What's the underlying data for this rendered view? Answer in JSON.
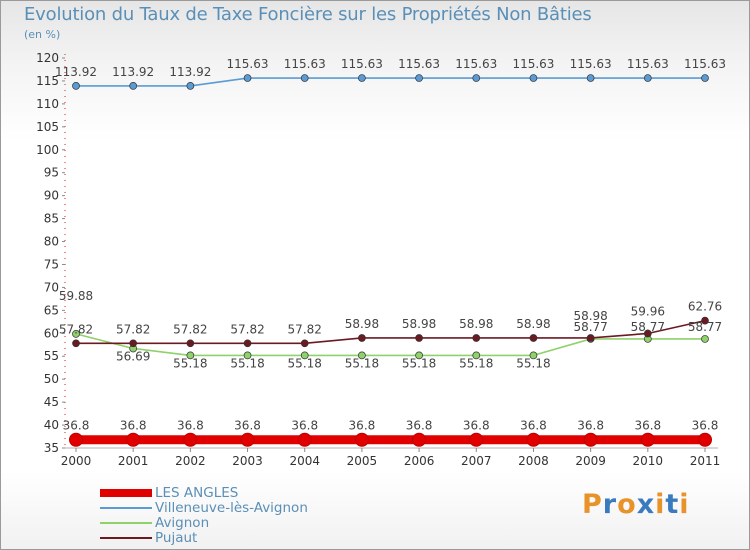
{
  "title": "Evolution du Taux de Taxe Foncière sur les Propriétés Non Bâties",
  "unit": "(en %)",
  "logo": {
    "text": "Proxiti",
    "letters": [
      "P",
      "r",
      "o",
      "x",
      "i",
      "t",
      "i"
    ],
    "colors": [
      "#e8922a",
      "#3a7bbf",
      "#e8922a",
      "#3a7bbf",
      "#e8922a",
      "#3a7bbf",
      "#e8922a"
    ]
  },
  "chart_data": {
    "type": "line",
    "title": "Evolution du Taux de Taxe Foncière sur les Propriétés Non Bâties",
    "ylabel": "(en %)",
    "xlabel": "",
    "x": [
      "2000",
      "2001",
      "2002",
      "2003",
      "2004",
      "2005",
      "2006",
      "2007",
      "2008",
      "2009",
      "2010",
      "2011"
    ],
    "ylim": [
      35,
      120
    ],
    "yticks": [
      35,
      40,
      45,
      50,
      55,
      60,
      65,
      70,
      75,
      80,
      85,
      90,
      95,
      100,
      105,
      110,
      115,
      120
    ],
    "grid": false,
    "legend_position": "bottom-left",
    "series": [
      {
        "name": "LES ANGLES",
        "color": "#e00000",
        "values": [
          36.8,
          36.8,
          36.8,
          36.8,
          36.8,
          36.8,
          36.8,
          36.8,
          36.8,
          36.8,
          36.8,
          36.8
        ],
        "labels": [
          "36.8",
          "36.8",
          "36.8",
          "36.8",
          "36.8",
          "36.8",
          "36.8",
          "36.8",
          "36.8",
          "36.8",
          "36.8",
          "36.8"
        ]
      },
      {
        "name": "Villeneuve-lès-Avignon",
        "color": "#5b9bd5",
        "values": [
          113.92,
          113.92,
          113.92,
          115.63,
          115.63,
          115.63,
          115.63,
          115.63,
          115.63,
          115.63,
          115.63,
          115.63
        ],
        "labels": [
          "113.92",
          "113.92",
          "113.92",
          "115.63",
          "115.63",
          "115.63",
          "115.63",
          "115.63",
          "115.63",
          "115.63",
          "115.63",
          "115.63"
        ]
      },
      {
        "name": "Avignon",
        "color": "#8fd16a",
        "values": [
          59.88,
          56.69,
          55.18,
          55.18,
          55.18,
          55.18,
          55.18,
          55.18,
          55.18,
          58.77,
          58.77,
          58.77
        ],
        "labels": [
          "59.88",
          "56.69",
          "55.18",
          "55.18",
          "55.18",
          "55.18",
          "55.18",
          "55.18",
          "55.18",
          "58.77",
          "58.77",
          "58.77"
        ]
      },
      {
        "name": "Pujaut",
        "color": "#6b1a22",
        "values": [
          57.82,
          57.82,
          57.82,
          57.82,
          57.82,
          58.98,
          58.98,
          58.98,
          58.98,
          58.98,
          59.96,
          62.76
        ],
        "labels": [
          "57.82",
          "57.82",
          "57.82",
          "57.82",
          "57.82",
          "58.98",
          "58.98",
          "58.98",
          "58.98",
          "58.98",
          "59.96",
          "62.76"
        ]
      }
    ]
  }
}
